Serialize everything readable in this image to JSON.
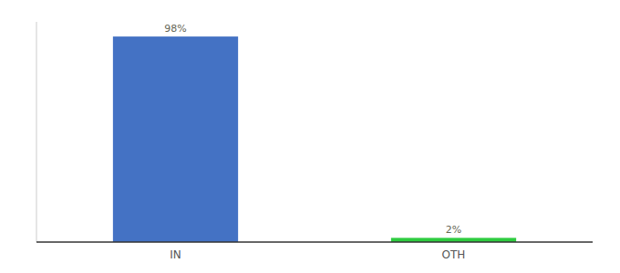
{
  "chart_data": {
    "type": "bar",
    "categories": [
      "IN",
      "OTH"
    ],
    "values": [
      98,
      2
    ],
    "colors": [
      "#4472c4",
      "#2ecc40"
    ],
    "ylim": [
      0,
      105
    ],
    "data_labels": true,
    "value_labels": [
      "98%",
      "2%"
    ],
    "tick_labels": "x"
  }
}
